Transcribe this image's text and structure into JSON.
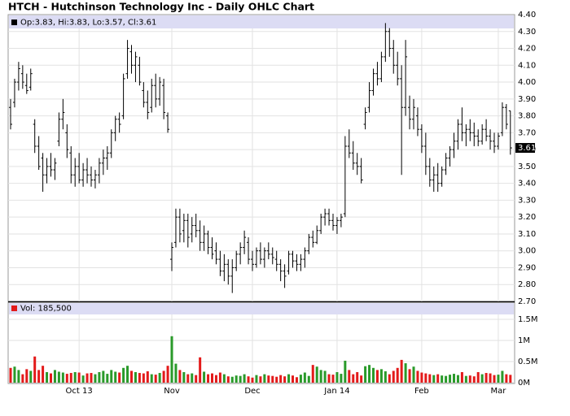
{
  "chart_data": {
    "type": "ohlc",
    "title": "HTCH - Hutchinson Technology Inc - Daily OHLC Chart",
    "legend": "Op:3.83, Hi:3.83, Lo:3.57, Cl:3.61",
    "volume_legend": "Vol: 185,500",
    "categories": [
      null,
      null,
      null,
      null,
      null,
      null,
      null,
      null,
      null,
      null,
      null,
      null,
      null,
      null,
      null,
      null,
      null,
      "Oct 13",
      null,
      null,
      null,
      null,
      null,
      null,
      null,
      null,
      null,
      null,
      null,
      null,
      null,
      null,
      null,
      null,
      null,
      null,
      null,
      null,
      null,
      null,
      "Nov",
      null,
      null,
      null,
      null,
      null,
      null,
      null,
      null,
      null,
      null,
      null,
      null,
      null,
      null,
      null,
      null,
      null,
      null,
      null,
      "Dec",
      null,
      null,
      null,
      null,
      null,
      null,
      null,
      null,
      null,
      null,
      null,
      null,
      null,
      null,
      null,
      null,
      null,
      null,
      null,
      null,
      "Jan 14",
      null,
      null,
      null,
      null,
      null,
      null,
      null,
      null,
      null,
      null,
      null,
      null,
      null,
      null,
      null,
      null,
      null,
      null,
      null,
      null,
      "Feb",
      null,
      null,
      null,
      null,
      null,
      null,
      null,
      null,
      null,
      null,
      null,
      null,
      null,
      null,
      null,
      null,
      null,
      null,
      "Mar",
      null,
      null,
      null
    ],
    "open": [
      3.85,
      3.88,
      4.0,
      4.05,
      3.98,
      3.97,
      3.75,
      3.62,
      3.55,
      3.45,
      3.5,
      3.48,
      3.65,
      3.78,
      3.7,
      3.58,
      3.45,
      3.5,
      3.42,
      3.48,
      3.45,
      3.42,
      3.45,
      3.52,
      3.55,
      3.58,
      3.7,
      3.78,
      3.8,
      4.05,
      4.18,
      4.1,
      4.1,
      3.95,
      3.88,
      3.85,
      3.98,
      3.9,
      3.98,
      3.8,
      2.95,
      3.05,
      3.2,
      3.12,
      3.18,
      3.1,
      3.15,
      3.12,
      3.05,
      3.1,
      3.02,
      3.0,
      2.95,
      2.88,
      2.92,
      2.85,
      2.9,
      2.98,
      3.02,
      3.05,
      2.95,
      2.92,
      3.0,
      2.95,
      3.0,
      2.98,
      2.95,
      2.92,
      2.88,
      2.88,
      2.98,
      2.94,
      2.92,
      2.95,
      3.0,
      3.08,
      3.05,
      3.12,
      3.2,
      3.22,
      3.18,
      3.15,
      3.18,
      3.22,
      3.62,
      3.58,
      3.52,
      3.5,
      3.75,
      3.85,
      3.95,
      4.05,
      4.02,
      4.15,
      4.3,
      4.2,
      4.1,
      4.02,
      3.85,
      3.85,
      3.78,
      3.8,
      3.72,
      3.62,
      3.5,
      3.42,
      3.45,
      3.4,
      3.48,
      3.55,
      3.6,
      3.65,
      3.75,
      3.7,
      3.72,
      3.7,
      3.68,
      3.65,
      3.72,
      3.68,
      3.65,
      3.62,
      3.7,
      3.85,
      3.83
    ],
    "high": [
      3.9,
      4.02,
      4.12,
      4.1,
      4.05,
      4.08,
      3.78,
      3.68,
      3.58,
      3.55,
      3.58,
      3.55,
      3.82,
      3.9,
      3.75,
      3.62,
      3.55,
      3.58,
      3.52,
      3.55,
      3.5,
      3.48,
      3.55,
      3.6,
      3.62,
      3.72,
      3.8,
      3.82,
      4.05,
      4.25,
      4.22,
      4.18,
      4.15,
      4.0,
      3.95,
      4.02,
      4.05,
      4.03,
      4.02,
      3.82,
      3.05,
      3.25,
      3.25,
      3.22,
      3.22,
      3.2,
      3.22,
      3.18,
      3.15,
      3.12,
      3.08,
      3.05,
      3.0,
      2.98,
      2.95,
      2.95,
      3.0,
      3.05,
      3.12,
      3.08,
      3.0,
      3.02,
      3.05,
      3.02,
      3.05,
      3.02,
      3.0,
      2.95,
      2.92,
      3.0,
      3.0,
      2.98,
      2.98,
      3.02,
      3.1,
      3.12,
      3.15,
      3.22,
      3.25,
      3.25,
      3.22,
      3.2,
      3.22,
      3.68,
      3.72,
      3.65,
      3.58,
      3.55,
      3.85,
      4.0,
      4.08,
      4.12,
      4.18,
      4.35,
      4.32,
      4.25,
      4.18,
      4.1,
      4.25,
      3.92,
      3.9,
      3.85,
      3.75,
      3.7,
      3.55,
      3.5,
      3.52,
      3.5,
      3.58,
      3.62,
      3.7,
      3.78,
      3.85,
      3.75,
      3.78,
      3.76,
      3.72,
      3.75,
      3.78,
      3.72,
      3.7,
      3.7,
      3.88,
      3.87,
      3.83
    ],
    "low": [
      3.72,
      3.85,
      3.95,
      3.96,
      3.93,
      3.95,
      3.58,
      3.48,
      3.35,
      3.4,
      3.44,
      3.42,
      3.62,
      3.72,
      3.55,
      3.4,
      3.38,
      3.4,
      3.38,
      3.4,
      3.38,
      3.37,
      3.4,
      3.45,
      3.48,
      3.55,
      3.65,
      3.7,
      3.78,
      4.02,
      4.05,
      4.0,
      3.98,
      3.85,
      3.78,
      3.82,
      3.85,
      3.86,
      3.78,
      3.7,
      2.88,
      3.02,
      3.05,
      3.05,
      3.02,
      3.05,
      3.08,
      3.0,
      3.0,
      2.98,
      2.95,
      2.92,
      2.85,
      2.82,
      2.8,
      2.75,
      2.88,
      2.92,
      2.98,
      2.92,
      2.88,
      2.9,
      2.92,
      2.9,
      2.95,
      2.92,
      2.88,
      2.82,
      2.78,
      2.86,
      2.9,
      2.88,
      2.88,
      2.9,
      2.98,
      3.02,
      3.04,
      3.1,
      3.15,
      3.15,
      3.12,
      3.1,
      3.14,
      3.2,
      3.55,
      3.48,
      3.45,
      3.4,
      3.72,
      3.82,
      3.92,
      3.98,
      4.0,
      4.12,
      4.15,
      4.05,
      3.98,
      3.45,
      3.8,
      3.72,
      3.72,
      3.68,
      3.58,
      3.45,
      3.38,
      3.35,
      3.35,
      3.38,
      3.45,
      3.5,
      3.55,
      3.6,
      3.65,
      3.62,
      3.65,
      3.62,
      3.62,
      3.63,
      3.65,
      3.6,
      3.58,
      3.6,
      3.68,
      3.72,
      3.57
    ],
    "close": [
      3.75,
      4.0,
      4.08,
      4.0,
      3.95,
      4.05,
      3.62,
      3.5,
      3.45,
      3.5,
      3.48,
      3.52,
      3.78,
      3.82,
      3.6,
      3.45,
      3.5,
      3.42,
      3.48,
      3.45,
      3.42,
      3.45,
      3.52,
      3.55,
      3.58,
      3.7,
      3.78,
      3.75,
      4.02,
      4.2,
      4.1,
      4.15,
      4.0,
      3.88,
      3.82,
      3.98,
      3.9,
      4.0,
      3.82,
      3.72,
      3.02,
      3.2,
      3.1,
      3.18,
      3.08,
      3.15,
      3.12,
      3.05,
      3.1,
      3.02,
      2.98,
      2.95,
      2.88,
      2.92,
      2.85,
      2.9,
      2.98,
      3.02,
      3.08,
      2.95,
      2.92,
      3.0,
      2.95,
      3.0,
      2.98,
      2.96,
      2.92,
      2.88,
      2.85,
      2.98,
      2.94,
      2.92,
      2.95,
      3.0,
      3.08,
      3.05,
      3.12,
      3.2,
      3.22,
      3.18,
      3.15,
      3.18,
      3.2,
      3.62,
      3.58,
      3.52,
      3.5,
      3.42,
      3.82,
      3.95,
      4.05,
      4.02,
      4.15,
      4.3,
      4.2,
      4.1,
      4.02,
      3.85,
      4.15,
      3.78,
      3.85,
      3.72,
      3.62,
      3.5,
      3.42,
      3.45,
      3.4,
      3.48,
      3.55,
      3.6,
      3.65,
      3.75,
      3.7,
      3.72,
      3.7,
      3.68,
      3.65,
      3.72,
      3.68,
      3.65,
      3.62,
      3.68,
      3.85,
      3.75,
      3.61
    ],
    "volume": [
      350000,
      380000,
      300000,
      200000,
      320000,
      280000,
      620000,
      300000,
      400000,
      250000,
      220000,
      300000,
      260000,
      240000,
      210000,
      230000,
      250000,
      240000,
      170000,
      220000,
      230000,
      200000,
      250000,
      280000,
      210000,
      300000,
      260000,
      240000,
      350000,
      400000,
      280000,
      250000,
      230000,
      220000,
      270000,
      200000,
      190000,
      230000,
      280000,
      400000,
      1100000,
      450000,
      300000,
      250000,
      200000,
      220000,
      180000,
      600000,
      260000,
      200000,
      220000,
      180000,
      240000,
      200000,
      150000,
      140000,
      170000,
      160000,
      200000,
      150000,
      120000,
      180000,
      150000,
      200000,
      170000,
      160000,
      140000,
      180000,
      150000,
      200000,
      170000,
      130000,
      190000,
      240000,
      160000,
      420000,
      380000,
      300000,
      280000,
      200000,
      190000,
      250000,
      210000,
      520000,
      300000,
      200000,
      250000,
      170000,
      390000,
      420000,
      350000,
      300000,
      320000,
      270000,
      200000,
      280000,
      350000,
      540000,
      460000,
      320000,
      380000,
      280000,
      240000,
      220000,
      200000,
      180000,
      200000,
      170000,
      160000,
      190000,
      210000,
      180000,
      250000,
      160000,
      170000,
      150000,
      250000,
      200000,
      230000,
      220000,
      180000,
      190000,
      280000,
      200000,
      185500
    ],
    "color": "#000000",
    "up_color": "#2a9a2a",
    "down_color": "#e31a1a",
    "volume_legend_color": "#e31a1a",
    "ylim": [
      2.7,
      4.4
    ],
    "yticks": [
      {
        "value": 2.7,
        "label": "2.70"
      },
      {
        "value": 2.8,
        "label": "2.80"
      },
      {
        "value": 2.9,
        "label": "2.90"
      },
      {
        "value": 3.0,
        "label": "3.00"
      },
      {
        "value": 3.1,
        "label": "3.10"
      },
      {
        "value": 3.2,
        "label": "3.20"
      },
      {
        "value": 3.3,
        "label": "3.30"
      },
      {
        "value": 3.4,
        "label": "3.40"
      },
      {
        "value": 3.5,
        "label": "3.50"
      },
      {
        "value": 3.6,
        "label": "3.60"
      },
      {
        "value": 3.7,
        "label": "3.70"
      },
      {
        "value": 3.8,
        "label": "3.80"
      },
      {
        "value": 3.9,
        "label": "3.90"
      },
      {
        "value": 4.0,
        "label": "4.00"
      },
      {
        "value": 4.1,
        "label": "4.10"
      },
      {
        "value": 4.2,
        "label": "4.20"
      },
      {
        "value": 4.3,
        "label": "4.30"
      },
      {
        "value": 4.4,
        "label": "4.40"
      }
    ],
    "volume_ylim": [
      0,
      1500000
    ],
    "volume_yticks": [
      {
        "value": 0,
        "label": "0M"
      },
      {
        "value": 500000,
        "label": "0.5M"
      },
      {
        "value": 1000000,
        "label": "1M"
      },
      {
        "value": 1500000,
        "label": "1.5M"
      }
    ],
    "grid": true
  }
}
